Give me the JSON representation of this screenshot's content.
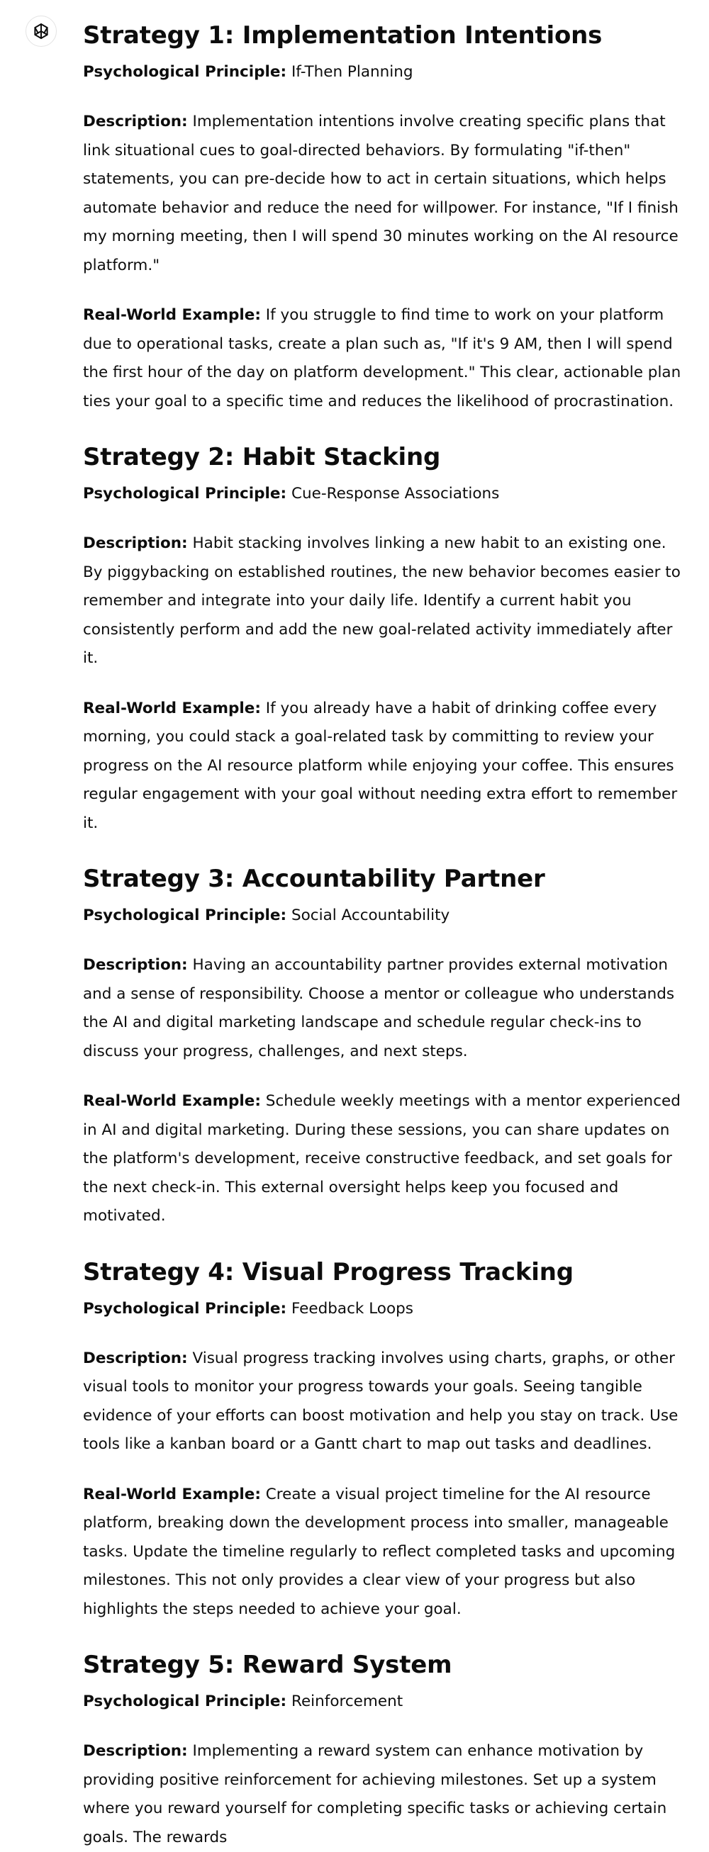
{
  "assistant": {
    "avatar_icon": "openai-logo-icon"
  },
  "strategies": [
    {
      "title": "Strategy 1: Implementation Intentions",
      "principle_label": "Psychological Principle:",
      "principle": "If-Then Planning",
      "description_label": "Description:",
      "description": "Implementation intentions involve creating specific plans that link situational cues to goal-directed behaviors. By formulating \"if-then\" statements, you can pre-decide how to act in certain situations, which helps automate behavior and reduce the need for willpower. For instance, \"If I finish my morning meeting, then I will spend 30 minutes working on the AI resource platform.\"",
      "example_label": "Real-World Example:",
      "example": "If you struggle to find time to work on your platform due to operational tasks, create a plan such as, \"If it's 9 AM, then I will spend the first hour of the day on platform development.\" This clear, actionable plan ties your goal to a specific time and reduces the likelihood of procrastination."
    },
    {
      "title": "Strategy 2: Habit Stacking",
      "principle_label": "Psychological Principle:",
      "principle": "Cue-Response Associations",
      "description_label": "Description:",
      "description": "Habit stacking involves linking a new habit to an existing one. By piggybacking on established routines, the new behavior becomes easier to remember and integrate into your daily life. Identify a current habit you consistently perform and add the new goal-related activity immediately after it.",
      "example_label": "Real-World Example:",
      "example": "If you already have a habit of drinking coffee every morning, you could stack a goal-related task by committing to review your progress on the AI resource platform while enjoying your coffee. This ensures regular engagement with your goal without needing extra effort to remember it."
    },
    {
      "title": "Strategy 3: Accountability Partner",
      "principle_label": "Psychological Principle:",
      "principle": "Social Accountability",
      "description_label": "Description:",
      "description": "Having an accountability partner provides external motivation and a sense of responsibility. Choose a mentor or colleague who understands the AI and digital marketing landscape and schedule regular check-ins to discuss your progress, challenges, and next steps.",
      "example_label": "Real-World Example:",
      "example": "Schedule weekly meetings with a mentor experienced in AI and digital marketing. During these sessions, you can share updates on the platform's development, receive constructive feedback, and set goals for the next check-in. This external oversight helps keep you focused and motivated."
    },
    {
      "title": "Strategy 4: Visual Progress Tracking",
      "principle_label": "Psychological Principle:",
      "principle": "Feedback Loops",
      "description_label": "Description:",
      "description": "Visual progress tracking involves using charts, graphs, or other visual tools to monitor your progress towards your goals. Seeing tangible evidence of your efforts can boost motivation and help you stay on track. Use tools like a kanban board or a Gantt chart to map out tasks and deadlines.",
      "example_label": "Real-World Example:",
      "example": "Create a visual project timeline for the AI resource platform, breaking down the development process into smaller, manageable tasks. Update the timeline regularly to reflect completed tasks and upcoming milestones. This not only provides a clear view of your progress but also highlights the steps needed to achieve your goal."
    },
    {
      "title": "Strategy 5: Reward System",
      "principle_label": "Psychological Principle:",
      "principle": "Reinforcement",
      "description_label": "Description:",
      "description": "Implementing a reward system can enhance motivation by providing positive reinforcement for achieving milestones. Set up a system where you reward yourself for completing specific tasks or achieving certain goals. The rewards"
    }
  ]
}
